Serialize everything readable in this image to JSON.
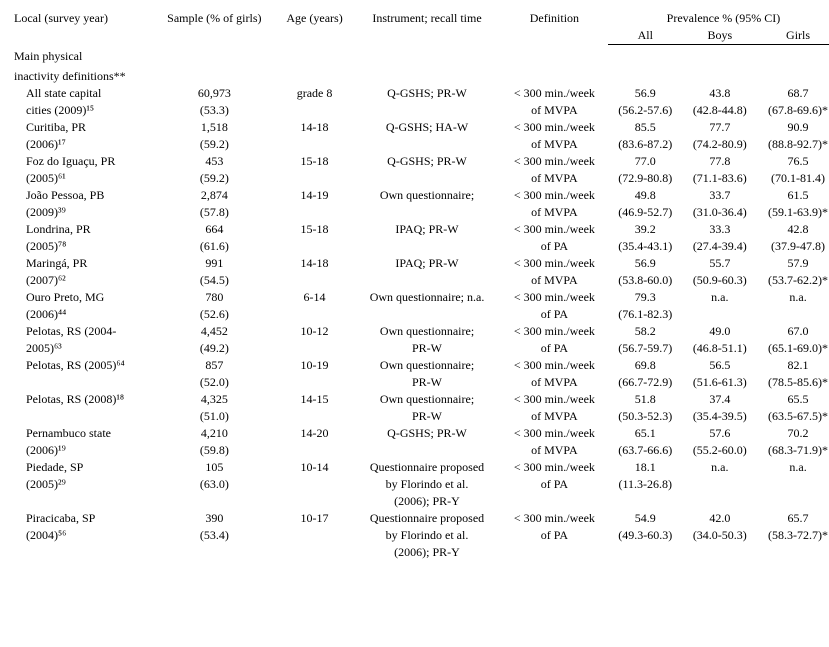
{
  "headers": {
    "local": "Local (survey year)",
    "sample": "Sample (% of girls)",
    "age": "Age (years)",
    "instrument": "Instrument; recall time",
    "definition": "Definition",
    "prevalence_group": "Prevalence % (95% CI)",
    "all": "All",
    "boys": "Boys",
    "girls": "Girls"
  },
  "section_title_1": "Main physical",
  "section_title_2": "inactivity definitions**",
  "rows": [
    {
      "local1": "All state capital",
      "local2": "cities (2009)¹⁵",
      "sample1": "60,973",
      "sample2": "(53.3)",
      "age": "grade 8",
      "instrument": "Q-GSHS; PR-W",
      "def1": "< 300 min./week",
      "def2": "of MVPA",
      "all1": "56.9",
      "all2": "(56.2-57.6)",
      "boys1": "43.8",
      "boys2": "(42.8-44.8)",
      "girls1": "68.7",
      "girls2": "(67.8-69.6)*"
    },
    {
      "local1": "Curitiba, PR",
      "local2": "(2006)¹⁷",
      "sample1": "1,518",
      "sample2": "(59.2)",
      "age": "14-18",
      "instrument": "Q-GSHS; HA-W",
      "def1": "< 300 min./week",
      "def2": "of MVPA",
      "all1": "85.5",
      "all2": "(83.6-87.2)",
      "boys1": "77.7",
      "boys2": "(74.2-80.9)",
      "girls1": "90.9",
      "girls2": "(88.8-92.7)*"
    },
    {
      "local1": "Foz do Iguaçu, PR",
      "local2": "(2005)⁶¹",
      "sample1": "453",
      "sample2": "(59.2)",
      "age": "15-18",
      "instrument": "Q-GSHS; PR-W",
      "def1": "< 300 min./week",
      "def2": "of MVPA",
      "all1": "77.0",
      "all2": "(72.9-80.8)",
      "boys1": "77.8",
      "boys2": "(71.1-83.6)",
      "girls1": "76.5",
      "girls2": "(70.1-81.4)"
    },
    {
      "local1": "João Pessoa, PB",
      "local2": "(2009)³⁹",
      "sample1": "2,874",
      "sample2": "(57.8)",
      "age": "14-19",
      "instrument": "Own questionnaire;",
      "def1": "< 300 min./week",
      "def2": "of MVPA",
      "all1": "49.8",
      "all2": "(46.9-52.7)",
      "boys1": "33.7",
      "boys2": "(31.0-36.4)",
      "girls1": "61.5",
      "girls2": "(59.1-63.9)*"
    },
    {
      "local1": "Londrina, PR",
      "local2": "(2005)⁷⁸",
      "sample1": "664",
      "sample2": "(61.6)",
      "age": "15-18",
      "instrument": "IPAQ; PR-W",
      "def1": "< 300 min./week",
      "def2": "of PA",
      "all1": "39.2",
      "all2": "(35.4-43.1)",
      "boys1": "33.3",
      "boys2": "(27.4-39.4)",
      "girls1": "42.8",
      "girls2": "(37.9-47.8)"
    },
    {
      "local1": "Maringá, PR",
      "local2": "(2007)⁶²",
      "sample1": "991",
      "sample2": "(54.5)",
      "age": "14-18",
      "instrument": "IPAQ; PR-W",
      "def1": "< 300 min./week",
      "def2": "of MVPA",
      "all1": "56.9",
      "all2": "(53.8-60.0)",
      "boys1": "55.7",
      "boys2": "(50.9-60.3)",
      "girls1": "57.9",
      "girls2": "(53.7-62.2)*"
    },
    {
      "local1": "Ouro Preto, MG",
      "local2": "(2006)⁴⁴",
      "sample1": "780",
      "sample2": "(52.6)",
      "age": "6-14",
      "instrument": "Own questionnaire; n.a.",
      "def1": "< 300 min./week",
      "def2": "of PA",
      "all1": "79.3",
      "all2": "(76.1-82.3)",
      "boys1": "n.a.",
      "boys2": "",
      "girls1": "n.a.",
      "girls2": ""
    },
    {
      "local1": "Pelotas, RS (2004-",
      "local2": "2005)⁶³",
      "sample1": "4,452",
      "sample2": "(49.2)",
      "age": "10-12",
      "instrument": "Own questionnaire;",
      "instrument2": "PR-W",
      "def1": "< 300 min./week",
      "def2": "of PA",
      "all1": "58.2",
      "all2": "(56.7-59.7)",
      "boys1": "49.0",
      "boys2": "(46.8-51.1)",
      "girls1": "67.0",
      "girls2": "(65.1-69.0)*"
    },
    {
      "local1": "Pelotas, RS (2005)⁶⁴",
      "local2": "",
      "sample1": "857",
      "sample2": "(52.0)",
      "age": "10-19",
      "instrument": "Own questionnaire;",
      "instrument2": "PR-W",
      "def1": "< 300 min./week",
      "def2": "of MVPA",
      "all1": "69.8",
      "all2": "(66.7-72.9)",
      "boys1": "56.5",
      "boys2": "(51.6-61.3)",
      "girls1": "82.1",
      "girls2": "(78.5-85.6)*"
    },
    {
      "local1": "Pelotas, RS (2008)¹⁸",
      "local2": "",
      "sample1": "4,325",
      "sample2": "(51.0)",
      "age": "14-15",
      "instrument": "Own questionnaire;",
      "instrument2": "PR-W",
      "def1": "< 300 min./week",
      "def2": "of MVPA",
      "all1": "51.8",
      "all2": "(50.3-52.3)",
      "boys1": "37.4",
      "boys2": "(35.4-39.5)",
      "girls1": "65.5",
      "girls2": "(63.5-67.5)*"
    },
    {
      "local1": "Pernambuco state",
      "local2": "(2006)¹⁹",
      "sample1": "4,210",
      "sample2": "(59.8)",
      "age": "14-20",
      "instrument": "Q-GSHS; PR-W",
      "def1": "< 300 min./week",
      "def2": "of MVPA",
      "all1": "65.1",
      "all2": "(63.7-66.6)",
      "boys1": "57.6",
      "boys2": "(55.2-60.0)",
      "girls1": "70.2",
      "girls2": "(68.3-71.9)*"
    },
    {
      "local1": "Piedade, SP",
      "local2": "(2005)²⁹",
      "sample1": "105",
      "sample2": "(63.0)",
      "age": "10-14",
      "instrument": "Questionnaire proposed",
      "instrument2": "by Florindo et al.",
      "instrument3": "(2006); PR-Y",
      "def1": "< 300 min./week",
      "def2": "of PA",
      "all1": "18.1",
      "all2": "(11.3-26.8)",
      "boys1": "n.a.",
      "boys2": "",
      "girls1": "n.a.",
      "girls2": ""
    },
    {
      "local1": "Piracicaba, SP",
      "local2": "(2004)⁵⁶",
      "sample1": "390",
      "sample2": "(53.4)",
      "age": "10-17",
      "instrument": "Questionnaire proposed",
      "instrument2": "by Florindo et al.",
      "instrument3": "(2006); PR-Y",
      "def1": "< 300 min./week",
      "def2": "of PA",
      "all1": "54.9",
      "all2": "(49.3-60.3)",
      "boys1": "42.0",
      "boys2": "(34.0-50.3)",
      "girls1": "65.7",
      "girls2": "(58.3-72.7)*"
    }
  ]
}
